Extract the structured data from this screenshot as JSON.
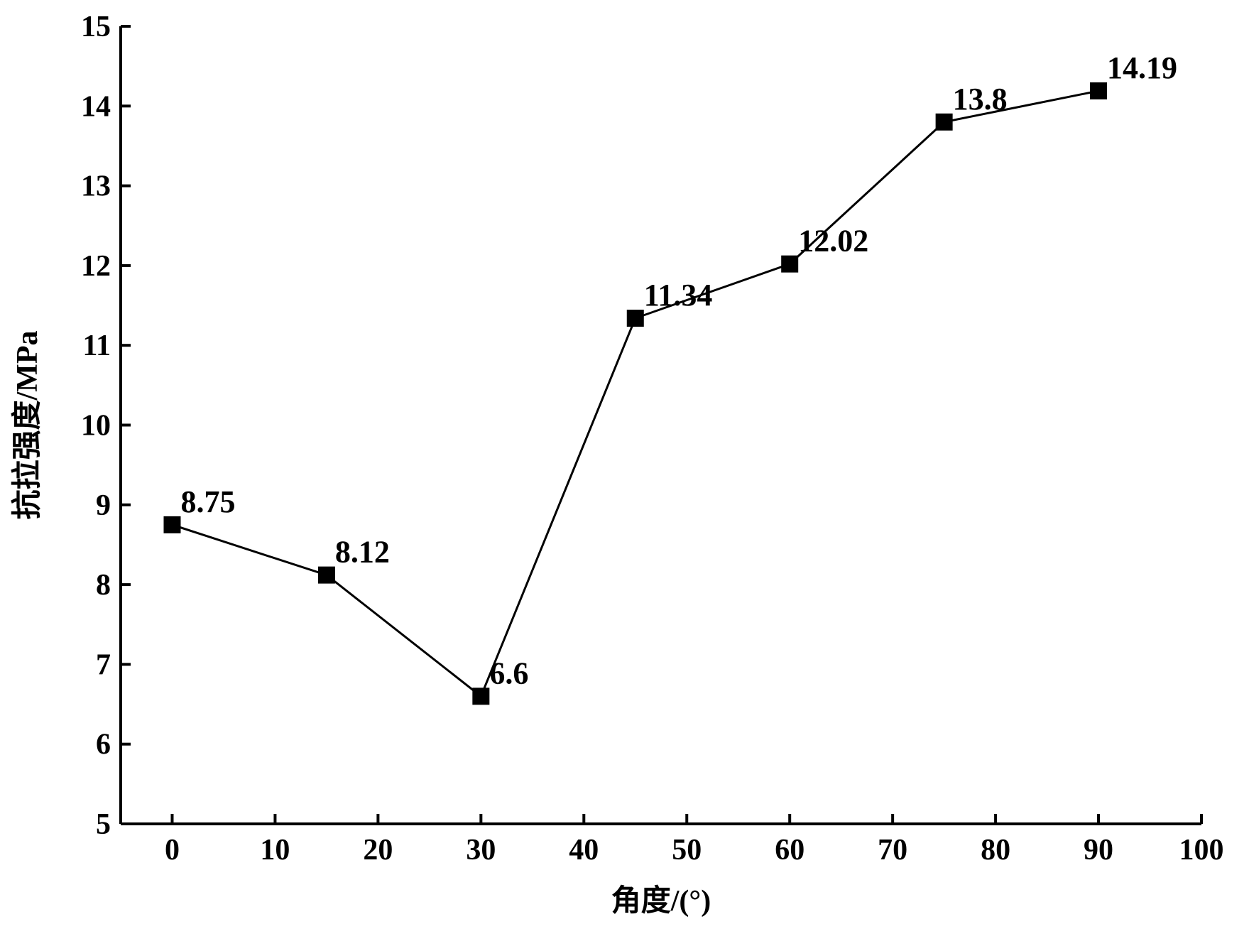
{
  "chart_data": {
    "type": "line",
    "title": "",
    "xlabel": "角度/(°)",
    "ylabel": "抗拉强度/MPa",
    "xlim": [
      -5,
      100
    ],
    "ylim": [
      5,
      15
    ],
    "xticks": [
      0,
      10,
      20,
      30,
      40,
      50,
      60,
      70,
      80,
      90,
      100
    ],
    "yticks": [
      5,
      6,
      7,
      8,
      9,
      10,
      11,
      12,
      13,
      14,
      15
    ],
    "grid": false,
    "marker": "square",
    "series": [
      {
        "x": [
          0,
          15,
          30,
          45,
          60,
          75,
          90
        ],
        "values": [
          8.75,
          8.12,
          6.6,
          11.34,
          12.02,
          13.8,
          14.19
        ],
        "labels": [
          "8.75",
          "8.12",
          "6.6",
          "11.34",
          "12.02",
          "13.8",
          "14.19"
        ],
        "color": "#000000"
      }
    ]
  }
}
